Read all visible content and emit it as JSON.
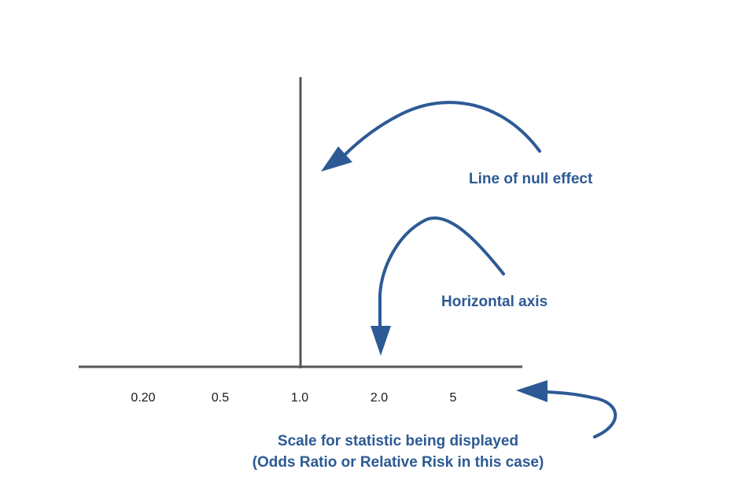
{
  "axis": {
    "ticks": [
      "0.20",
      "0.5",
      "1.0",
      "2.0",
      "5"
    ]
  },
  "annotations": {
    "null_line": "Line of null effect",
    "horizontal_axis": "Horizontal axis",
    "scale_line1": "Scale for statistic being displayed",
    "scale_line2": "(Odds Ratio or Relative Risk in this case)"
  },
  "colors": {
    "axis": "#555555",
    "annotation": "#2d5a94"
  },
  "icons": [
    "curved-arrow-icon",
    "curved-arrow-icon",
    "curved-arrow-icon"
  ]
}
